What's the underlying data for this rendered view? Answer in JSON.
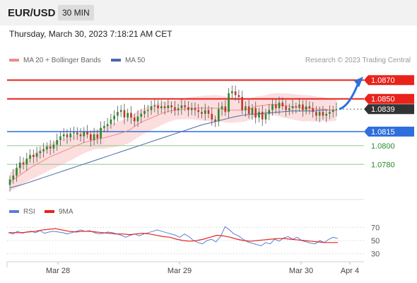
{
  "header": {
    "symbol": "EUR/USD",
    "timeframe": "30 MIN"
  },
  "timestamp": "Thursday, March 30, 2023 7:18:21 AM CET",
  "legend": {
    "ma20_label": "MA 20 + Bollinger Bands",
    "ma50_label": "MA 50",
    "credit": "Research © 2023 Trading Central",
    "rsi_label": "RSI",
    "ma9_label": "9MA"
  },
  "colors": {
    "resistance": "#e8231c",
    "support": "#2f6fdd",
    "target": "#2a8a2a",
    "current": "#333333",
    "ma20": "#f08a8a",
    "ma50": "#4a6aa8",
    "band": "#fcd8d8",
    "rsi": "#5b7fd6",
    "ma9": "#e8231c"
  },
  "chart_data": [
    {
      "type": "candlestick",
      "title": "",
      "ylim": [
        1.075,
        1.088
      ],
      "x_ticks": [
        "Mar 28",
        "Mar 29",
        "Mar 30",
        "Apr 4"
      ],
      "levels": [
        {
          "value": 1.087,
          "label": "1.0870",
          "kind": "resistance"
        },
        {
          "value": 1.085,
          "label": "1.0850",
          "kind": "resistance"
        },
        {
          "value": 1.0839,
          "label": "1.0839",
          "kind": "current"
        },
        {
          "value": 1.0815,
          "label": "1.0815",
          "kind": "support"
        },
        {
          "value": 1.08,
          "label": "1.0800",
          "kind": "target"
        },
        {
          "value": 1.078,
          "label": "1.0780",
          "kind": "target"
        }
      ],
      "projection": {
        "from": 1.0839,
        "to": 1.087
      },
      "close": [
        1.0764,
        1.0768,
        1.0776,
        1.0782,
        1.078,
        1.0786,
        1.079,
        1.0788,
        1.0792,
        1.0794,
        1.0796,
        1.0799,
        1.0797,
        1.0801,
        1.0806,
        1.081,
        1.0812,
        1.0809,
        1.0813,
        1.0814,
        1.0812,
        1.081,
        1.0815,
        1.0812,
        1.0806,
        1.0812,
        1.0808,
        1.0819,
        1.0821,
        1.0823,
        1.0828,
        1.0832,
        1.0836,
        1.0838,
        1.083,
        1.0835,
        1.083,
        1.0826,
        1.0831,
        1.0834,
        1.0837,
        1.0838,
        1.0842,
        1.0843,
        1.084,
        1.0842,
        1.084,
        1.0843,
        1.0841,
        1.0838,
        1.084,
        1.0843,
        1.0841,
        1.0838,
        1.084,
        1.0838,
        1.0836,
        1.0834,
        1.0838,
        1.0834,
        1.0828,
        1.0826,
        1.0839,
        1.0842,
        1.0836,
        1.0856,
        1.0858,
        1.0854,
        1.0852,
        1.0838,
        1.0842,
        1.0834,
        1.084,
        1.083,
        1.0836,
        1.0828,
        1.0834,
        1.0838,
        1.0844,
        1.084,
        1.0846,
        1.0842,
        1.0838,
        1.084,
        1.0842,
        1.0841,
        1.0844,
        1.0838,
        1.0842,
        1.084,
        1.0836,
        1.0832,
        1.0836,
        1.0832,
        1.0834,
        1.0836,
        1.0838,
        1.0839
      ],
      "ma20": [
        1.0761,
        1.0766,
        1.0771,
        1.0776,
        1.078,
        1.0784,
        1.0788,
        1.0791,
        1.0794,
        1.0797,
        1.08,
        1.0803,
        1.0805,
        1.0807,
        1.0808,
        1.081,
        1.0812,
        1.0814,
        1.0817,
        1.0822,
        1.0826,
        1.0829,
        1.0832,
        1.0835,
        1.0837,
        1.0838,
        1.0839,
        1.084,
        1.084,
        1.084,
        1.084,
        1.084,
        1.0839,
        1.0838,
        1.0838,
        1.0838,
        1.0839,
        1.0842,
        1.0843,
        1.0844,
        1.0844,
        1.0843,
        1.0842,
        1.0841,
        1.084,
        1.084,
        1.0839,
        1.0839,
        1.0838,
        1.0838
      ],
      "ma50": [
        1.0755,
        1.0758,
        1.0762,
        1.0766,
        1.077,
        1.0774,
        1.0778,
        1.0782,
        1.0786,
        1.079,
        1.0794,
        1.0798,
        1.0802,
        1.0806,
        1.081,
        1.0814,
        1.0818,
        1.0822,
        1.0825,
        1.0828,
        1.0831,
        1.0833,
        1.0834,
        1.0835,
        1.0836,
        1.0837,
        1.0837,
        1.0837,
        1.0838,
        1.0838
      ]
    },
    {
      "type": "line",
      "title": "",
      "ylim": [
        20,
        80
      ],
      "y_ticks": [
        30,
        50,
        70
      ],
      "x_ticks": [
        "Mar 28",
        "Mar 29",
        "Mar 30",
        "Apr 4"
      ],
      "series": [
        {
          "name": "RSI",
          "values": [
            62,
            60,
            64,
            61,
            63,
            64,
            62,
            65,
            61,
            63,
            64,
            63,
            62,
            60,
            62,
            64,
            66,
            64,
            65,
            62,
            60,
            61,
            63,
            62,
            60,
            58,
            55,
            58,
            60,
            57,
            60,
            62,
            64,
            66,
            64,
            62,
            60,
            58,
            55,
            60,
            56,
            50,
            47,
            45,
            50,
            52,
            48,
            56,
            71,
            66,
            60,
            57,
            52,
            48,
            46,
            44,
            42,
            47,
            45,
            52,
            49,
            54,
            56,
            52,
            55,
            50,
            48,
            46,
            45,
            50,
            47,
            52,
            55,
            53
          ]
        },
        {
          "name": "9MA",
          "values": [
            62,
            62,
            62,
            63,
            64,
            66,
            67,
            68,
            66,
            64,
            63,
            64,
            64,
            63,
            62,
            61,
            60,
            60,
            59,
            60,
            61,
            60,
            58,
            56,
            55,
            52,
            50,
            49,
            50,
            52,
            55,
            58,
            57,
            55,
            52,
            50,
            49,
            50,
            51,
            52,
            53,
            53,
            52,
            51,
            50,
            49,
            48,
            47,
            47,
            47
          ]
        }
      ]
    }
  ]
}
